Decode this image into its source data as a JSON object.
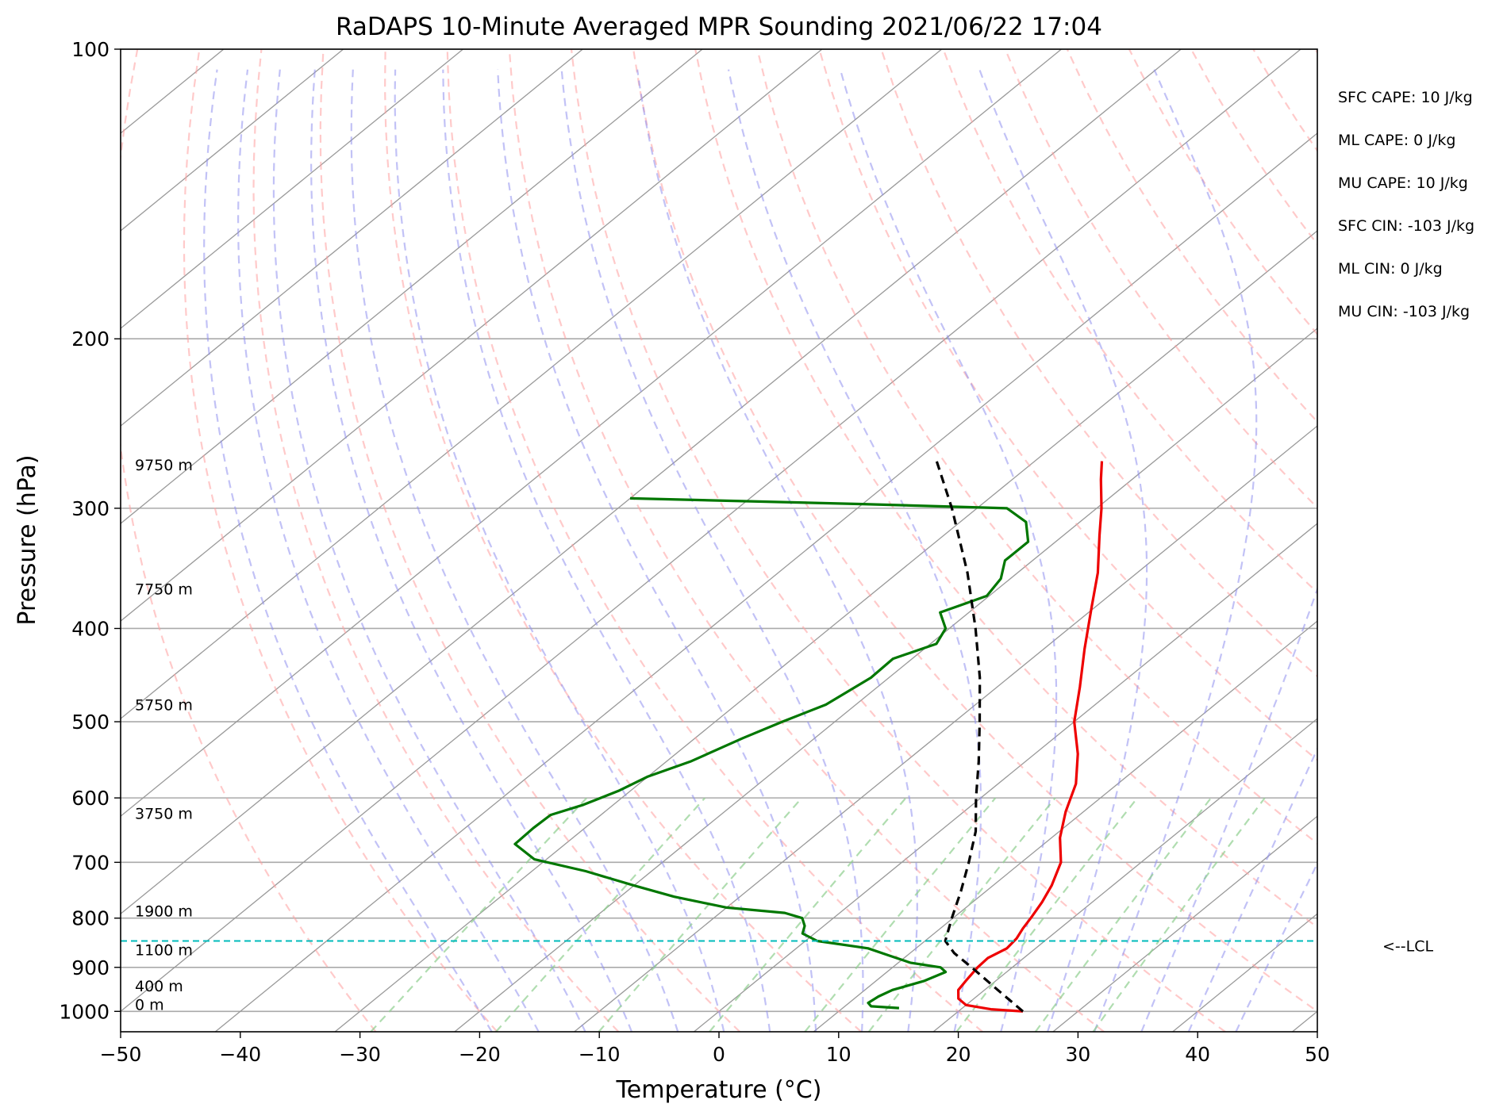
{
  "chart_data": {
    "type": "line",
    "title": "RaDAPS 10-Minute Averaged MPR Sounding 2021/06/22 17:04",
    "xlabel": "Temperature (°C)",
    "ylabel": "Pressure (hPa)",
    "xlim": [
      -50,
      50
    ],
    "ylim": [
      1050,
      100
    ],
    "y_scale": "log",
    "skew_t": true,
    "grid": true,
    "x_ticks": [
      -50,
      -40,
      -30,
      -20,
      -10,
      0,
      10,
      20,
      30,
      40,
      50
    ],
    "x_tick_labels": [
      "−50",
      "−40",
      "−30",
      "−20",
      "−10",
      "0",
      "10",
      "20",
      "30",
      "40",
      "50"
    ],
    "y_ticks": [
      1000,
      900,
      800,
      700,
      600,
      500,
      400,
      300,
      200,
      100
    ],
    "y_tick_labels": [
      "1000",
      "900",
      "800",
      "700",
      "600",
      "500",
      "400",
      "300",
      "200",
      "100"
    ],
    "colors": {
      "temperature": "#ee0000",
      "dewpoint": "#007700",
      "parcel": "#000000",
      "lcl": "#00bbbb",
      "isotherm": "#999999",
      "dry_adiabat": "#ff9f9f",
      "moist_adiabat": "#8f8fef",
      "mixing_ratio": "#8fcf8f"
    },
    "series": [
      {
        "role": "temperature",
        "points": [
          {
            "p": 1000,
            "t": 25.4
          },
          {
            "p": 995,
            "t": 22.5
          },
          {
            "p": 985,
            "t": 20.0
          },
          {
            "p": 970,
            "t": 18.7
          },
          {
            "p": 950,
            "t": 17.8
          },
          {
            "p": 930,
            "t": 17.5
          },
          {
            "p": 900,
            "t": 17.1
          },
          {
            "p": 880,
            "t": 17.0
          },
          {
            "p": 860,
            "t": 17.6
          },
          {
            "p": 840,
            "t": 17.4
          },
          {
            "p": 820,
            "t": 16.9
          },
          {
            "p": 800,
            "t": 16.5
          },
          {
            "p": 770,
            "t": 15.8
          },
          {
            "p": 740,
            "t": 14.9
          },
          {
            "p": 700,
            "t": 13.3
          },
          {
            "p": 660,
            "t": 10.7
          },
          {
            "p": 620,
            "t": 8.5
          },
          {
            "p": 580,
            "t": 6.5
          },
          {
            "p": 540,
            "t": 3.6
          },
          {
            "p": 500,
            "t": 0.0
          },
          {
            "p": 460,
            "t": -3.1
          },
          {
            "p": 420,
            "t": -6.6
          },
          {
            "p": 380,
            "t": -10.3
          },
          {
            "p": 350,
            "t": -13.3
          },
          {
            "p": 320,
            "t": -17.0
          },
          {
            "p": 300,
            "t": -19.6
          },
          {
            "p": 280,
            "t": -22.6
          },
          {
            "p": 268,
            "t": -24.4
          }
        ]
      },
      {
        "role": "dewpoint",
        "points": [
          {
            "p": 992,
            "t": 14.7
          },
          {
            "p": 988,
            "t": 12.2
          },
          {
            "p": 980,
            "t": 11.6
          },
          {
            "p": 965,
            "t": 11.8
          },
          {
            "p": 950,
            "t": 12.3
          },
          {
            "p": 930,
            "t": 14.0
          },
          {
            "p": 910,
            "t": 14.9
          },
          {
            "p": 900,
            "t": 14.0
          },
          {
            "p": 890,
            "t": 11.0
          },
          {
            "p": 875,
            "t": 8.5
          },
          {
            "p": 860,
            "t": 6.0
          },
          {
            "p": 845,
            "t": 1.0
          },
          {
            "p": 830,
            "t": -1.0
          },
          {
            "p": 815,
            "t": -1.6
          },
          {
            "p": 800,
            "t": -2.6
          },
          {
            "p": 790,
            "t": -4.6
          },
          {
            "p": 780,
            "t": -10.0
          },
          {
            "p": 760,
            "t": -15.5
          },
          {
            "p": 740,
            "t": -20.0
          },
          {
            "p": 715,
            "t": -25.5
          },
          {
            "p": 695,
            "t": -31.0
          },
          {
            "p": 670,
            "t": -34.2
          },
          {
            "p": 645,
            "t": -34.3
          },
          {
            "p": 625,
            "t": -34.2
          },
          {
            "p": 610,
            "t": -32.5
          },
          {
            "p": 590,
            "t": -31.0
          },
          {
            "p": 570,
            "t": -30.0
          },
          {
            "p": 550,
            "t": -28.0
          },
          {
            "p": 520,
            "t": -26.0
          },
          {
            "p": 500,
            "t": -24.4
          },
          {
            "p": 480,
            "t": -22.5
          },
          {
            "p": 450,
            "t": -21.5
          },
          {
            "p": 430,
            "t": -21.6
          },
          {
            "p": 415,
            "t": -19.5
          },
          {
            "p": 400,
            "t": -20.3
          },
          {
            "p": 385,
            "t": -22.4
          },
          {
            "p": 370,
            "t": -20.2
          },
          {
            "p": 355,
            "t": -20.8
          },
          {
            "p": 340,
            "t": -22.3
          },
          {
            "p": 325,
            "t": -22.3
          },
          {
            "p": 310,
            "t": -24.5
          },
          {
            "p": 300,
            "t": -27.5
          },
          {
            "p": 297,
            "t": -40.0
          },
          {
            "p": 293,
            "t": -60.0
          }
        ]
      },
      {
        "role": "parcel",
        "points": [
          {
            "p": 1000,
            "t": 25.4
          },
          {
            "p": 950,
            "t": 21.1
          },
          {
            "p": 900,
            "t": 16.6
          },
          {
            "p": 870,
            "t": 13.7
          },
          {
            "p": 845,
            "t": 11.7
          },
          {
            "p": 800,
            "t": 9.9
          },
          {
            "p": 750,
            "t": 7.9
          },
          {
            "p": 700,
            "t": 5.6
          },
          {
            "p": 650,
            "t": 3.0
          },
          {
            "p": 600,
            "t": -0.4
          },
          {
            "p": 550,
            "t": -3.9
          },
          {
            "p": 500,
            "t": -7.9
          },
          {
            "p": 450,
            "t": -12.4
          },
          {
            "p": 400,
            "t": -17.8
          },
          {
            "p": 350,
            "t": -24.2
          },
          {
            "p": 300,
            "t": -32.1
          },
          {
            "p": 268,
            "t": -38.2
          }
        ]
      }
    ],
    "lcl": {
      "label": "<--LCL",
      "pressure": 845
    },
    "height_labels": [
      {
        "text": "9750 m",
        "p": 275
      },
      {
        "text": "7750 m",
        "p": 370
      },
      {
        "text": "5750 m",
        "p": 488
      },
      {
        "text": "3750 m",
        "p": 633
      },
      {
        "text": "1900 m",
        "p": 800
      },
      {
        "text": "1100 m",
        "p": 878
      },
      {
        "text": "400 m",
        "p": 957
      },
      {
        "text": "0 m",
        "p": 1000
      }
    ]
  },
  "stats": [
    "SFC CAPE: 10 J/kg",
    "ML CAPE: 0 J/kg",
    "MU CAPE: 10 J/kg",
    "SFC CIN: -103 J/kg",
    "ML CIN: 0 J/kg",
    "MU CIN: -103 J/kg"
  ]
}
